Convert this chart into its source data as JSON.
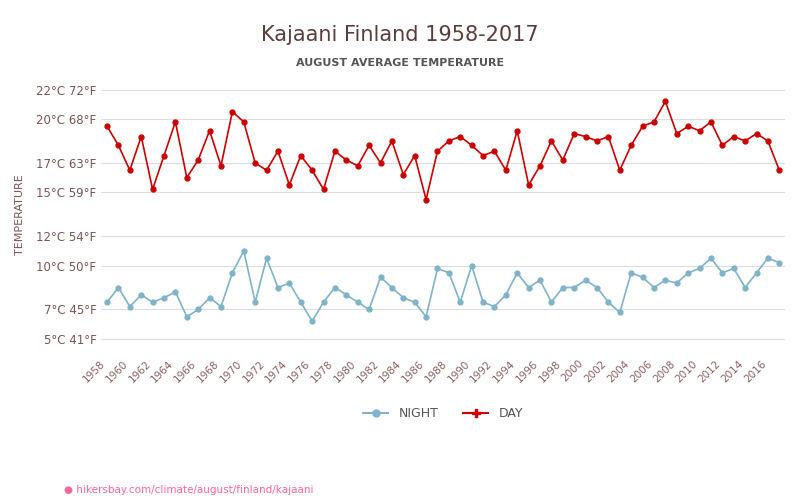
{
  "title": "Kajaani Finland 1958-2017",
  "subtitle": "AUGUST AVERAGE TEMPERATURE",
  "ylabel": "TEMPERATURE",
  "footer": "hikersbay.com/climate/august/finland/kajaani",
  "years": [
    1958,
    1959,
    1960,
    1961,
    1962,
    1963,
    1964,
    1965,
    1966,
    1967,
    1968,
    1969,
    1970,
    1971,
    1972,
    1973,
    1974,
    1975,
    1976,
    1977,
    1978,
    1979,
    1980,
    1981,
    1982,
    1983,
    1984,
    1985,
    1986,
    1987,
    1988,
    1989,
    1990,
    1991,
    1992,
    1993,
    1994,
    1995,
    1996,
    1997,
    1998,
    1999,
    2000,
    2001,
    2002,
    2003,
    2004,
    2005,
    2006,
    2007,
    2008,
    2009,
    2010,
    2011,
    2012,
    2013,
    2014,
    2015,
    2016,
    2017
  ],
  "day_temps": [
    19.5,
    18.2,
    16.5,
    18.8,
    15.2,
    17.5,
    19.8,
    16.0,
    17.2,
    19.2,
    16.8,
    20.5,
    19.8,
    17.0,
    16.5,
    17.8,
    15.5,
    17.5,
    16.5,
    15.2,
    17.8,
    17.2,
    16.8,
    18.2,
    17.0,
    18.5,
    16.2,
    17.5,
    14.5,
    17.8,
    18.5,
    18.8,
    18.2,
    17.5,
    17.8,
    16.5,
    19.2,
    15.5,
    16.8,
    18.5,
    17.2,
    19.0,
    18.8,
    18.5,
    18.8,
    16.5,
    18.2,
    19.5,
    19.8,
    21.2,
    19.0,
    19.5,
    19.2,
    19.8,
    18.2,
    18.8,
    18.5,
    19.0,
    18.5,
    16.5
  ],
  "night_temps": [
    7.5,
    8.5,
    7.2,
    8.0,
    7.5,
    7.8,
    8.2,
    6.5,
    7.0,
    7.8,
    7.2,
    9.5,
    11.0,
    7.5,
    10.5,
    8.5,
    8.8,
    7.5,
    6.2,
    7.5,
    8.5,
    8.0,
    7.5,
    7.0,
    9.2,
    8.5,
    7.8,
    7.5,
    6.5,
    9.8,
    9.5,
    7.5,
    10.0,
    7.5,
    7.2,
    8.0,
    9.5,
    8.5,
    9.0,
    7.5,
    8.5,
    8.5,
    9.0,
    8.5,
    7.5,
    6.8,
    9.5,
    9.2,
    8.5,
    9.0,
    8.8,
    9.5,
    9.8,
    10.5,
    9.5,
    9.8,
    8.5,
    9.5,
    10.5,
    10.2
  ],
  "day_color": "#cc0000",
  "night_color": "#7fb3c8",
  "title_color": "#5a3e3e",
  "subtitle_color": "#555555",
  "axis_label_color": "#7a5555",
  "tick_color": "#8a6060",
  "grid_color": "#dddddd",
  "background_color": "#ffffff",
  "footer_color": "#ff6699",
  "yticks_c": [
    5,
    7,
    10,
    12,
    15,
    17,
    20,
    22
  ],
  "yticks_f": [
    41,
    45,
    50,
    54,
    59,
    63,
    68,
    72
  ],
  "ylim": [
    4,
    23
  ]
}
